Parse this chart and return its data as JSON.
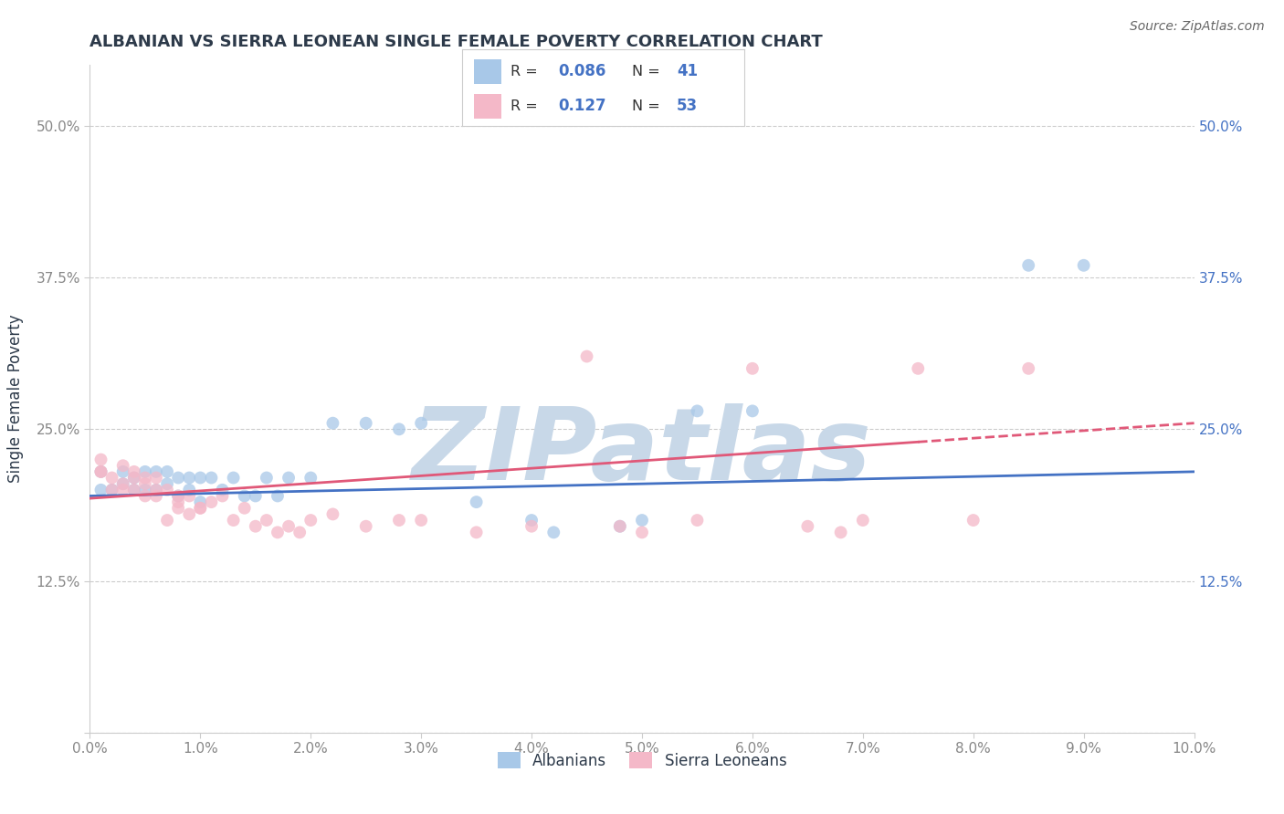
{
  "title": "ALBANIAN VS SIERRA LEONEAN SINGLE FEMALE POVERTY CORRELATION CHART",
  "source_text": "Source: ZipAtlas.com",
  "ylabel_text": "Single Female Poverty",
  "xlim": [
    0.0,
    0.1
  ],
  "ylim": [
    0.0,
    0.55
  ],
  "xticks": [
    0.0,
    0.01,
    0.02,
    0.03,
    0.04,
    0.05,
    0.06,
    0.07,
    0.08,
    0.09,
    0.1
  ],
  "xticklabels": [
    "0.0%",
    "1.0%",
    "2.0%",
    "3.0%",
    "4.0%",
    "5.0%",
    "6.0%",
    "7.0%",
    "8.0%",
    "9.0%",
    "10.0%"
  ],
  "yticks": [
    0.0,
    0.125,
    0.25,
    0.375,
    0.5
  ],
  "yticklabels_left": [
    "",
    "12.5%",
    "25.0%",
    "37.5%",
    "50.0%"
  ],
  "yticklabels_right": [
    "",
    "12.5%",
    "25.0%",
    "37.5%",
    "50.0%"
  ],
  "albanians_color": "#a8c8e8",
  "sierra_leoneans_color": "#f4b8c8",
  "albanians_line_color": "#4472c4",
  "sierra_leoneans_line_color": "#e05878",
  "watermark_color": "#c8d8e8",
  "albanians_R": 0.086,
  "albanians_N": 41,
  "sierra_leoneans_R": 0.127,
  "sierra_leoneans_N": 53,
  "albanians_x": [
    0.001,
    0.001,
    0.002,
    0.003,
    0.003,
    0.004,
    0.004,
    0.005,
    0.005,
    0.006,
    0.006,
    0.007,
    0.007,
    0.008,
    0.008,
    0.009,
    0.009,
    0.01,
    0.01,
    0.011,
    0.012,
    0.013,
    0.014,
    0.015,
    0.016,
    0.017,
    0.018,
    0.02,
    0.022,
    0.025,
    0.028,
    0.03,
    0.035,
    0.04,
    0.042,
    0.048,
    0.05,
    0.055,
    0.06,
    0.085,
    0.09
  ],
  "albanians_y": [
    0.2,
    0.215,
    0.2,
    0.205,
    0.215,
    0.2,
    0.21,
    0.2,
    0.215,
    0.2,
    0.215,
    0.205,
    0.215,
    0.195,
    0.21,
    0.2,
    0.21,
    0.19,
    0.21,
    0.21,
    0.2,
    0.21,
    0.195,
    0.195,
    0.21,
    0.195,
    0.21,
    0.21,
    0.255,
    0.255,
    0.25,
    0.255,
    0.19,
    0.175,
    0.165,
    0.17,
    0.175,
    0.265,
    0.265,
    0.385,
    0.385
  ],
  "sierra_leoneans_x": [
    0.001,
    0.001,
    0.001,
    0.002,
    0.002,
    0.003,
    0.003,
    0.003,
    0.004,
    0.004,
    0.004,
    0.005,
    0.005,
    0.005,
    0.006,
    0.006,
    0.006,
    0.007,
    0.007,
    0.008,
    0.008,
    0.008,
    0.009,
    0.009,
    0.01,
    0.01,
    0.011,
    0.012,
    0.013,
    0.014,
    0.015,
    0.016,
    0.017,
    0.018,
    0.019,
    0.02,
    0.022,
    0.025,
    0.028,
    0.03,
    0.035,
    0.04,
    0.045,
    0.048,
    0.05,
    0.055,
    0.06,
    0.065,
    0.068,
    0.07,
    0.075,
    0.08,
    0.085
  ],
  "sierra_leoneans_y": [
    0.215,
    0.215,
    0.225,
    0.2,
    0.21,
    0.2,
    0.22,
    0.205,
    0.2,
    0.215,
    0.21,
    0.195,
    0.21,
    0.205,
    0.21,
    0.195,
    0.2,
    0.175,
    0.2,
    0.19,
    0.195,
    0.185,
    0.195,
    0.18,
    0.185,
    0.185,
    0.19,
    0.195,
    0.175,
    0.185,
    0.17,
    0.175,
    0.165,
    0.17,
    0.165,
    0.175,
    0.18,
    0.17,
    0.175,
    0.175,
    0.165,
    0.17,
    0.31,
    0.17,
    0.165,
    0.175,
    0.3,
    0.17,
    0.165,
    0.175,
    0.3,
    0.175,
    0.3
  ],
  "background_color": "#ffffff",
  "grid_color": "#cccccc",
  "title_color": "#2d3a4a",
  "axis_label_color": "#2d3a4a",
  "tick_label_color": "#888888",
  "right_ytick_color": "#4472c4",
  "marker_size": 100
}
